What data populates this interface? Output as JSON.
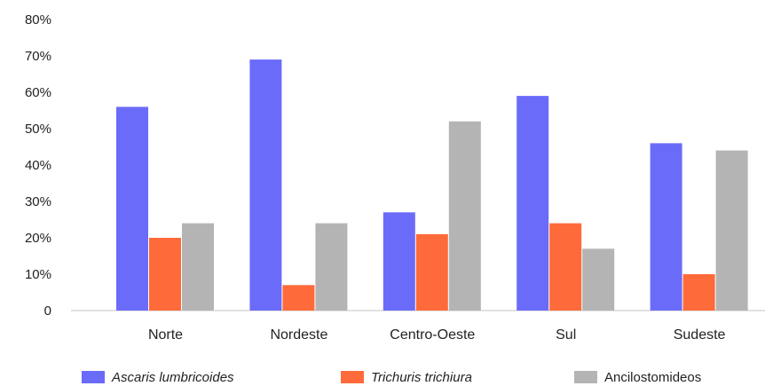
{
  "chart_data": {
    "type": "bar",
    "categories": [
      "Norte",
      "Nordeste",
      "Centro-Oeste",
      "Sul",
      "Sudeste"
    ],
    "series": [
      {
        "name": "Ascaris lumbricoides",
        "values": [
          56,
          69,
          27,
          59,
          46
        ],
        "color": "#6b6bfa",
        "italic": true
      },
      {
        "name": "Trichuris trichiura",
        "values": [
          20,
          7,
          21,
          24,
          10
        ],
        "color": "#ff6a3a",
        "italic": true
      },
      {
        "name": "Ancilostomideos",
        "values": [
          24,
          24,
          52,
          17,
          44
        ],
        "color": "#b4b4b4",
        "italic": false
      }
    ],
    "yticks": [
      "0",
      "10%",
      "20%",
      "30%",
      "40%",
      "50%",
      "60%",
      "70%",
      "80%"
    ],
    "ylim": [
      0,
      80
    ],
    "grid": false,
    "legend": "bottom"
  }
}
